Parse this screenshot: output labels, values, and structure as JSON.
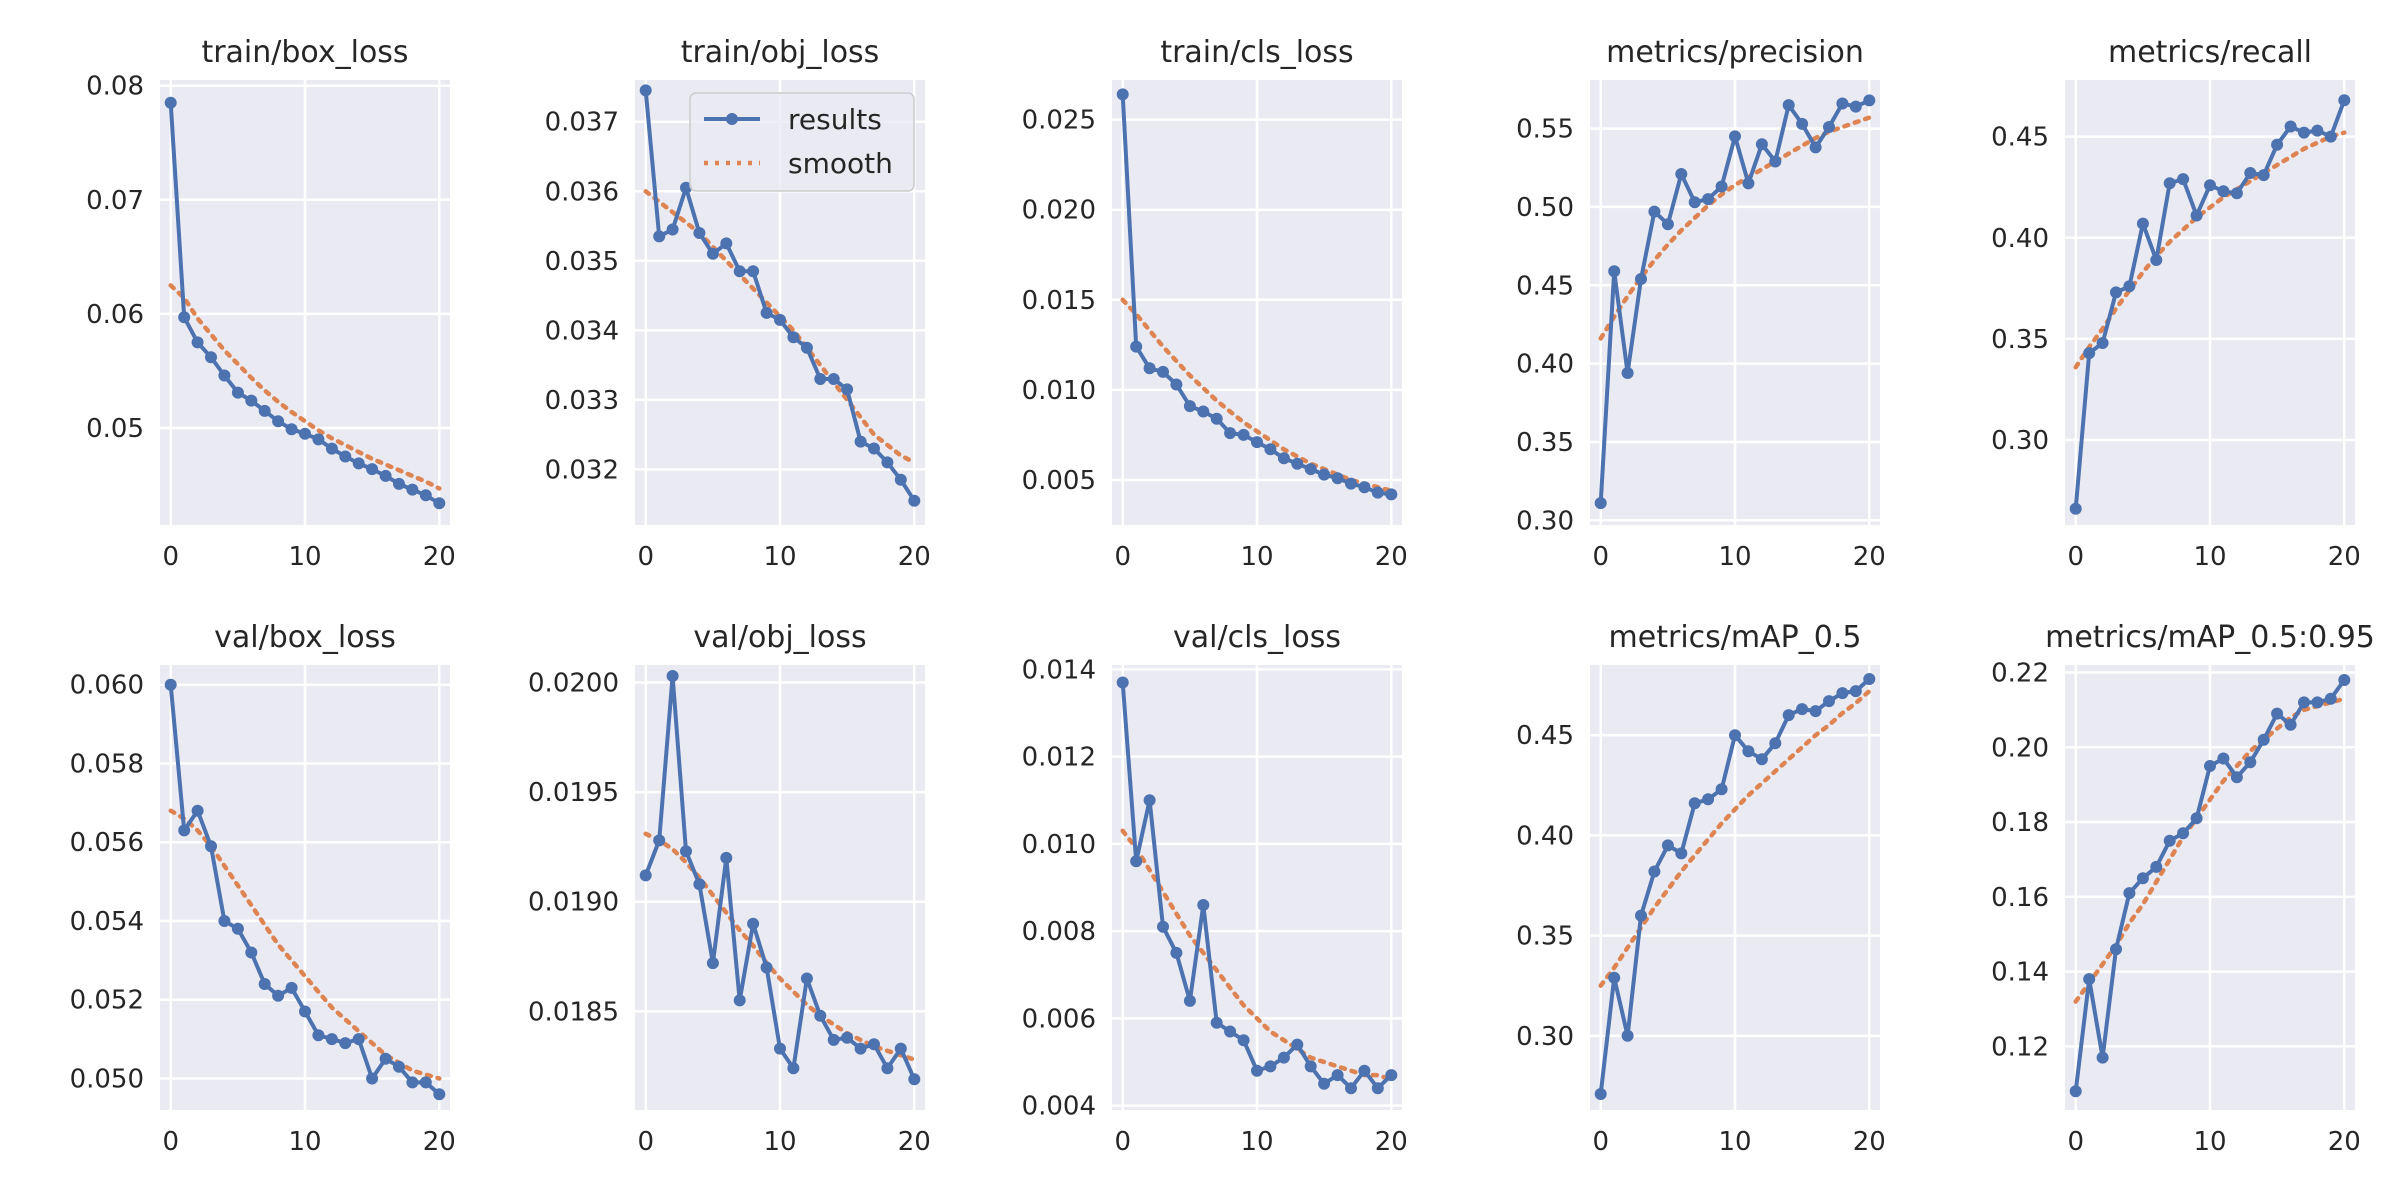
{
  "legend": {
    "results_label": "results",
    "smooth_label": "smooth"
  },
  "colors": {
    "results": "#4C72B0",
    "smooth": "#DD8452",
    "panel_bg": "#EAEAF2",
    "grid": "#FFFFFF"
  },
  "chart_data": [
    {
      "type": "line",
      "title": "train/box_loss",
      "x": [
        0,
        1,
        2,
        3,
        4,
        5,
        6,
        7,
        8,
        9,
        10,
        11,
        12,
        13,
        14,
        15,
        16,
        17,
        18,
        19,
        20
      ],
      "ylim": [
        0.0415,
        0.0805
      ],
      "yticks": [
        0.05,
        0.06,
        0.07,
        0.08
      ],
      "yticklabels": [
        "0.05",
        "0.06",
        "0.07",
        "0.08"
      ],
      "xticks": [
        0,
        10,
        20
      ],
      "grid": true,
      "series": [
        {
          "name": "results",
          "values": [
            0.0785,
            0.0597,
            0.0575,
            0.0562,
            0.0546,
            0.0531,
            0.0524,
            0.0515,
            0.0506,
            0.0499,
            0.0495,
            0.049,
            0.0482,
            0.0475,
            0.0469,
            0.0464,
            0.0458,
            0.0451,
            0.0446,
            0.0441,
            0.0434
          ]
        },
        {
          "name": "smooth",
          "values": [
            0.0625,
            0.0614,
            0.0596,
            0.0582,
            0.0568,
            0.0556,
            0.0544,
            0.0533,
            0.0523,
            0.0514,
            0.0506,
            0.0498,
            0.0491,
            0.0485,
            0.0479,
            0.0473,
            0.0468,
            0.0463,
            0.0458,
            0.0453,
            0.0447
          ]
        }
      ]
    },
    {
      "type": "line",
      "title": "train/obj_loss",
      "x": [
        0,
        1,
        2,
        3,
        4,
        5,
        6,
        7,
        8,
        9,
        10,
        11,
        12,
        13,
        14,
        15,
        16,
        17,
        18,
        19,
        20
      ],
      "ylim": [
        0.0312,
        0.0376
      ],
      "yticks": [
        0.032,
        0.033,
        0.034,
        0.035,
        0.036,
        0.037
      ],
      "yticklabels": [
        "0.032",
        "0.033",
        "0.034",
        "0.035",
        "0.036",
        "0.037"
      ],
      "xticks": [
        0,
        10,
        20
      ],
      "grid": true,
      "legend": "top-right",
      "series": [
        {
          "name": "results",
          "values": [
            0.03745,
            0.03535,
            0.03545,
            0.03605,
            0.0354,
            0.0351,
            0.03525,
            0.03485,
            0.03485,
            0.03425,
            0.03415,
            0.0339,
            0.03375,
            0.0333,
            0.0333,
            0.03315,
            0.0324,
            0.0323,
            0.0321,
            0.03185,
            0.03155
          ]
        },
        {
          "name": "smooth",
          "values": [
            0.036,
            0.03585,
            0.0357,
            0.03555,
            0.0354,
            0.0352,
            0.035,
            0.0348,
            0.0346,
            0.0344,
            0.0342,
            0.034,
            0.03375,
            0.0335,
            0.03325,
            0.033,
            0.03275,
            0.0325,
            0.03235,
            0.0322,
            0.0321
          ]
        }
      ]
    },
    {
      "type": "line",
      "title": "train/cls_loss",
      "x": [
        0,
        1,
        2,
        3,
        4,
        5,
        6,
        7,
        8,
        9,
        10,
        11,
        12,
        13,
        14,
        15,
        16,
        17,
        18,
        19,
        20
      ],
      "ylim": [
        0.0025,
        0.0272
      ],
      "yticks": [
        0.005,
        0.01,
        0.015,
        0.02,
        0.025
      ],
      "yticklabels": [
        "0.005",
        "0.010",
        "0.015",
        "0.020",
        "0.025"
      ],
      "xticks": [
        0,
        10,
        20
      ],
      "grid": true,
      "series": [
        {
          "name": "results",
          "values": [
            0.0264,
            0.0124,
            0.0112,
            0.011,
            0.0103,
            0.0091,
            0.0088,
            0.0084,
            0.0076,
            0.0075,
            0.0071,
            0.0067,
            0.0062,
            0.0059,
            0.0056,
            0.0053,
            0.0051,
            0.0048,
            0.0046,
            0.0043,
            0.0042
          ]
        },
        {
          "name": "smooth",
          "values": [
            0.015,
            0.0142,
            0.0133,
            0.0124,
            0.0116,
            0.0108,
            0.0101,
            0.0094,
            0.0088,
            0.0082,
            0.0077,
            0.0072,
            0.0067,
            0.0063,
            0.0059,
            0.0056,
            0.0053,
            0.005,
            0.0048,
            0.0046,
            0.0044
          ]
        }
      ]
    },
    {
      "type": "line",
      "title": "metrics/precision",
      "x": [
        0,
        1,
        2,
        3,
        4,
        5,
        6,
        7,
        8,
        9,
        10,
        11,
        12,
        13,
        14,
        15,
        16,
        17,
        18,
        19,
        20
      ],
      "ylim": [
        0.297,
        0.581
      ],
      "yticks": [
        0.3,
        0.35,
        0.4,
        0.45,
        0.5,
        0.55
      ],
      "yticklabels": [
        "0.30",
        "0.35",
        "0.40",
        "0.45",
        "0.50",
        "0.55"
      ],
      "xticks": [
        0,
        10,
        20
      ],
      "grid": true,
      "series": [
        {
          "name": "results",
          "values": [
            0.311,
            0.459,
            0.394,
            0.454,
            0.497,
            0.489,
            0.521,
            0.503,
            0.505,
            0.513,
            0.545,
            0.515,
            0.54,
            0.529,
            0.565,
            0.553,
            0.538,
            0.551,
            0.566,
            0.564,
            0.568
          ]
        },
        {
          "name": "smooth",
          "values": [
            0.416,
            0.43,
            0.443,
            0.455,
            0.466,
            0.476,
            0.485,
            0.493,
            0.501,
            0.508,
            0.514,
            0.519,
            0.524,
            0.529,
            0.534,
            0.539,
            0.544,
            0.548,
            0.551,
            0.554,
            0.557
          ]
        }
      ]
    },
    {
      "type": "line",
      "title": "metrics/recall",
      "x": [
        0,
        1,
        2,
        3,
        4,
        5,
        6,
        7,
        8,
        9,
        10,
        11,
        12,
        13,
        14,
        15,
        16,
        17,
        18,
        19,
        20
      ],
      "ylim": [
        0.258,
        0.478
      ],
      "yticks": [
        0.3,
        0.35,
        0.4,
        0.45
      ],
      "yticklabels": [
        "0.30",
        "0.35",
        "0.40",
        "0.45"
      ],
      "xticks": [
        0,
        10,
        20
      ],
      "grid": true,
      "series": [
        {
          "name": "results",
          "values": [
            0.266,
            0.343,
            0.348,
            0.373,
            0.376,
            0.407,
            0.389,
            0.427,
            0.429,
            0.411,
            0.426,
            0.423,
            0.422,
            0.432,
            0.431,
            0.446,
            0.455,
            0.452,
            0.453,
            0.45,
            0.468
          ]
        },
        {
          "name": "smooth",
          "values": [
            0.336,
            0.346,
            0.355,
            0.365,
            0.374,
            0.383,
            0.391,
            0.398,
            0.404,
            0.41,
            0.415,
            0.42,
            0.424,
            0.428,
            0.432,
            0.436,
            0.44,
            0.444,
            0.447,
            0.45,
            0.452
          ]
        }
      ]
    },
    {
      "type": "line",
      "title": "val/box_loss",
      "x": [
        0,
        1,
        2,
        3,
        4,
        5,
        6,
        7,
        8,
        9,
        10,
        11,
        12,
        13,
        14,
        15,
        16,
        17,
        18,
        19,
        20
      ],
      "ylim": [
        0.0492,
        0.0605
      ],
      "yticks": [
        0.05,
        0.052,
        0.054,
        0.056,
        0.058,
        0.06
      ],
      "yticklabels": [
        "0.050",
        "0.052",
        "0.054",
        "0.056",
        "0.058",
        "0.060"
      ],
      "xticks": [
        0,
        10,
        20
      ],
      "grid": true,
      "series": [
        {
          "name": "results",
          "values": [
            0.06,
            0.0563,
            0.0568,
            0.0559,
            0.054,
            0.0538,
            0.0532,
            0.0524,
            0.0521,
            0.0523,
            0.0517,
            0.0511,
            0.051,
            0.0509,
            0.051,
            0.05,
            0.0505,
            0.0503,
            0.0499,
            0.0499,
            0.0496
          ]
        },
        {
          "name": "smooth",
          "values": [
            0.0568,
            0.0566,
            0.0563,
            0.0559,
            0.0554,
            0.0549,
            0.0544,
            0.0539,
            0.0534,
            0.053,
            0.0526,
            0.0522,
            0.0518,
            0.0515,
            0.0512,
            0.0509,
            0.0506,
            0.0504,
            0.0502,
            0.0501,
            0.05
          ]
        }
      ]
    },
    {
      "type": "line",
      "title": "val/obj_loss",
      "x": [
        0,
        1,
        2,
        3,
        4,
        5,
        6,
        7,
        8,
        9,
        10,
        11,
        12,
        13,
        14,
        15,
        16,
        17,
        18,
        19,
        20
      ],
      "ylim": [
        0.01805,
        0.02008
      ],
      "yticks": [
        0.0185,
        0.019,
        0.0195,
        0.02
      ],
      "yticklabels": [
        "0.0185",
        "0.0190",
        "0.0195",
        "0.0200"
      ],
      "xticks": [
        0,
        10,
        20
      ],
      "grid": true,
      "series": [
        {
          "name": "results",
          "values": [
            0.01912,
            0.01928,
            0.02003,
            0.01923,
            0.01908,
            0.01872,
            0.0192,
            0.01855,
            0.0189,
            0.0187,
            0.01833,
            0.01824,
            0.01865,
            0.01848,
            0.01837,
            0.01838,
            0.01833,
            0.01835,
            0.01824,
            0.01833,
            0.01819
          ]
        },
        {
          "name": "smooth",
          "values": [
            0.01931,
            0.01928,
            0.01924,
            0.01918,
            0.01911,
            0.01903,
            0.01895,
            0.01887,
            0.0188,
            0.01872,
            0.01865,
            0.01859,
            0.01853,
            0.01848,
            0.01844,
            0.0184,
            0.01837,
            0.01834,
            0.01832,
            0.0183,
            0.01828
          ]
        }
      ]
    },
    {
      "type": "line",
      "title": "val/cls_loss",
      "x": [
        0,
        1,
        2,
        3,
        4,
        5,
        6,
        7,
        8,
        9,
        10,
        11,
        12,
        13,
        14,
        15,
        16,
        17,
        18,
        19,
        20
      ],
      "ylim": [
        0.0039,
        0.0141
      ],
      "yticks": [
        0.004,
        0.006,
        0.008,
        0.01,
        0.012,
        0.014
      ],
      "yticklabels": [
        "0.004",
        "0.006",
        "0.008",
        "0.010",
        "0.012",
        "0.014"
      ],
      "xticks": [
        0,
        10,
        20
      ],
      "grid": true,
      "series": [
        {
          "name": "results",
          "values": [
            0.0137,
            0.0096,
            0.011,
            0.0081,
            0.0075,
            0.0064,
            0.0086,
            0.0059,
            0.0057,
            0.0055,
            0.0048,
            0.0049,
            0.0051,
            0.0054,
            0.0049,
            0.0045,
            0.0047,
            0.0044,
            0.0048,
            0.0044,
            0.0047
          ]
        },
        {
          "name": "smooth",
          "values": [
            0.0103,
            0.0099,
            0.0094,
            0.0089,
            0.0084,
            0.0079,
            0.0075,
            0.0071,
            0.0067,
            0.0063,
            0.006,
            0.0057,
            0.0055,
            0.0053,
            0.0051,
            0.005,
            0.0049,
            0.0048,
            0.0047,
            0.0047,
            0.0046
          ]
        }
      ]
    },
    {
      "type": "line",
      "title": "metrics/mAP_0.5",
      "x": [
        0,
        1,
        2,
        3,
        4,
        5,
        6,
        7,
        8,
        9,
        10,
        11,
        12,
        13,
        14,
        15,
        16,
        17,
        18,
        19,
        20
      ],
      "ylim": [
        0.263,
        0.485
      ],
      "yticks": [
        0.3,
        0.35,
        0.4,
        0.45
      ],
      "yticklabels": [
        "0.30",
        "0.35",
        "0.40",
        "0.45"
      ],
      "xticks": [
        0,
        10,
        20
      ],
      "grid": true,
      "series": [
        {
          "name": "results",
          "values": [
            0.271,
            0.329,
            0.3,
            0.36,
            0.382,
            0.395,
            0.391,
            0.416,
            0.418,
            0.423,
            0.45,
            0.442,
            0.438,
            0.446,
            0.46,
            0.463,
            0.462,
            0.467,
            0.471,
            0.472,
            0.478
          ]
        },
        {
          "name": "smooth",
          "values": [
            0.325,
            0.334,
            0.344,
            0.354,
            0.364,
            0.373,
            0.382,
            0.39,
            0.398,
            0.406,
            0.413,
            0.42,
            0.426,
            0.432,
            0.438,
            0.444,
            0.45,
            0.455,
            0.461,
            0.466,
            0.472
          ]
        }
      ]
    },
    {
      "type": "line",
      "title": "metrics/mAP_0.5:0.95",
      "x": [
        0,
        1,
        2,
        3,
        4,
        5,
        6,
        7,
        8,
        9,
        10,
        11,
        12,
        13,
        14,
        15,
        16,
        17,
        18,
        19,
        20
      ],
      "ylim": [
        0.103,
        0.222
      ],
      "yticks": [
        0.12,
        0.14,
        0.16,
        0.18,
        0.2,
        0.22
      ],
      "yticklabels": [
        "0.12",
        "0.14",
        "0.16",
        "0.18",
        "0.20",
        "0.22"
      ],
      "xticks": [
        0,
        10,
        20
      ],
      "grid": true,
      "series": [
        {
          "name": "results",
          "values": [
            0.108,
            0.138,
            0.117,
            0.146,
            0.161,
            0.165,
            0.168,
            0.175,
            0.177,
            0.181,
            0.195,
            0.197,
            0.192,
            0.196,
            0.202,
            0.209,
            0.206,
            0.212,
            0.212,
            0.213,
            0.218
          ]
        },
        {
          "name": "smooth",
          "values": [
            0.132,
            0.137,
            0.142,
            0.147,
            0.153,
            0.158,
            0.164,
            0.17,
            0.176,
            0.181,
            0.186,
            0.191,
            0.195,
            0.199,
            0.202,
            0.205,
            0.208,
            0.21,
            0.211,
            0.212,
            0.213
          ]
        }
      ]
    }
  ]
}
